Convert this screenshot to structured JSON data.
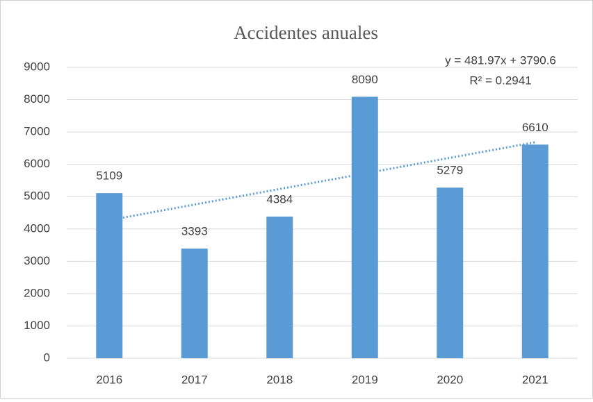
{
  "chart_data": {
    "type": "bar",
    "title": "Accidentes anuales",
    "categories": [
      "2016",
      "2017",
      "2018",
      "2019",
      "2020",
      "2021"
    ],
    "values": [
      5109,
      3393,
      4384,
      8090,
      5279,
      6610
    ],
    "color": "#5b9bd5",
    "ylim": [
      0,
      9000
    ],
    "yticks": [
      0,
      1000,
      2000,
      3000,
      4000,
      5000,
      6000,
      7000,
      8000,
      9000
    ],
    "grid": true,
    "trendline": {
      "equation": "y = 481.97x + 3790.6",
      "r2": "R² = 0.2941",
      "slope": 481.97,
      "intercept": 3790.6,
      "color": "#5b9bd5"
    }
  }
}
